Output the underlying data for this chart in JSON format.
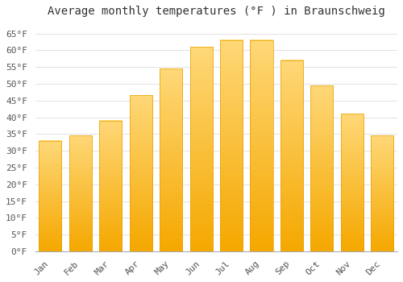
{
  "title": "Average monthly temperatures (°F ) in Braunschweig",
  "months": [
    "Jan",
    "Feb",
    "Mar",
    "Apr",
    "May",
    "Jun",
    "Jul",
    "Aug",
    "Sep",
    "Oct",
    "Nov",
    "Dec"
  ],
  "values": [
    33,
    34.5,
    39,
    46.5,
    54.5,
    61,
    63,
    63,
    57,
    49.5,
    41,
    34.5
  ],
  "bar_color_top": "#FFD060",
  "bar_color_bottom": "#F5A800",
  "bar_edge_color": "#E8A000",
  "background_color": "#FFFFFF",
  "ylim": [
    0,
    68
  ],
  "yticks": [
    0,
    5,
    10,
    15,
    20,
    25,
    30,
    35,
    40,
    45,
    50,
    55,
    60,
    65
  ],
  "ylabel_suffix": "°F",
  "grid_color": "#DDDDDD",
  "title_fontsize": 10,
  "tick_fontsize": 8,
  "font_family": "monospace",
  "label_color": "#555555"
}
